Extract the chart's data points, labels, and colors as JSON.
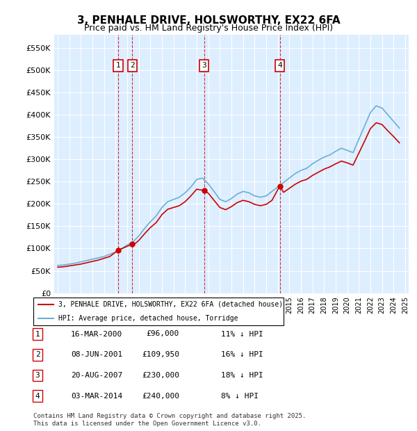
{
  "title": "3, PENHALE DRIVE, HOLSWORTHY, EX22 6FA",
  "subtitle": "Price paid vs. HM Land Registry's House Price Index (HPI)",
  "ylabel_ticks": [
    "£0",
    "£50K",
    "£100K",
    "£150K",
    "£200K",
    "£250K",
    "£300K",
    "£350K",
    "£400K",
    "£450K",
    "£500K",
    "£550K"
  ],
  "ytick_values": [
    0,
    50000,
    100000,
    150000,
    200000,
    250000,
    300000,
    350000,
    400000,
    450000,
    500000,
    550000
  ],
  "ylim": [
    0,
    580000
  ],
  "sale_dates_num": [
    2000.21,
    2001.44,
    2007.64,
    2014.17
  ],
  "sale_prices": [
    96000,
    109950,
    230000,
    240000
  ],
  "sale_labels": [
    "1",
    "2",
    "3",
    "4"
  ],
  "legend_red": "3, PENHALE DRIVE, HOLSWORTHY, EX22 6FA (detached house)",
  "legend_blue": "HPI: Average price, detached house, Torridge",
  "table_rows": [
    [
      "1",
      "16-MAR-2000",
      "£96,000",
      "11% ↓ HPI"
    ],
    [
      "2",
      "08-JUN-2001",
      "£109,950",
      "16% ↓ HPI"
    ],
    [
      "3",
      "20-AUG-2007",
      "£230,000",
      "18% ↓ HPI"
    ],
    [
      "4",
      "03-MAR-2014",
      "£240,000",
      "8% ↓ HPI"
    ]
  ],
  "footnote": "Contains HM Land Registry data © Crown copyright and database right 2025.\nThis data is licensed under the Open Government Licence v3.0.",
  "hpi_color": "#6baed6",
  "price_color": "#cc0000",
  "dashed_color": "#cc0000",
  "background_chart": "#ddeeff",
  "hpi_years": [
    1995.0,
    1995.5,
    1996.0,
    1996.5,
    1997.0,
    1997.5,
    1998.0,
    1998.5,
    1999.0,
    1999.5,
    2000.0,
    2000.5,
    2001.0,
    2001.5,
    2002.0,
    2002.5,
    2003.0,
    2003.5,
    2004.0,
    2004.5,
    2005.0,
    2005.5,
    2006.0,
    2006.5,
    2007.0,
    2007.5,
    2008.0,
    2008.5,
    2009.0,
    2009.5,
    2010.0,
    2010.5,
    2011.0,
    2011.5,
    2012.0,
    2012.5,
    2013.0,
    2013.5,
    2014.0,
    2014.5,
    2015.0,
    2015.5,
    2016.0,
    2016.5,
    2017.0,
    2017.5,
    2018.0,
    2018.5,
    2019.0,
    2019.5,
    2020.0,
    2020.5,
    2021.0,
    2021.5,
    2022.0,
    2022.5,
    2023.0,
    2023.5,
    2024.0,
    2024.5
  ],
  "hpi_values": [
    62000,
    63000,
    65000,
    67000,
    70000,
    73000,
    76000,
    79000,
    82000,
    87000,
    92000,
    99000,
    108000,
    115000,
    128000,
    145000,
    160000,
    173000,
    192000,
    205000,
    210000,
    215000,
    225000,
    238000,
    255000,
    258000,
    245000,
    228000,
    210000,
    205000,
    212000,
    222000,
    228000,
    225000,
    218000,
    215000,
    218000,
    228000,
    238000,
    248000,
    258000,
    268000,
    275000,
    280000,
    290000,
    298000,
    305000,
    310000,
    318000,
    325000,
    320000,
    315000,
    345000,
    375000,
    405000,
    420000,
    415000,
    400000,
    385000,
    370000
  ],
  "red_years": [
    1995.0,
    1995.5,
    1996.0,
    1996.5,
    1997.0,
    1997.5,
    1998.0,
    1998.5,
    1999.0,
    1999.5,
    2000.21,
    2001.44,
    2001.5,
    2002.0,
    2002.5,
    2003.0,
    2003.5,
    2004.0,
    2004.5,
    2005.0,
    2005.5,
    2006.0,
    2006.5,
    2007.0,
    2007.64,
    2008.0,
    2008.5,
    2009.0,
    2009.5,
    2010.0,
    2010.5,
    2011.0,
    2011.5,
    2012.0,
    2012.5,
    2013.0,
    2013.5,
    2014.17,
    2014.5,
    2015.0,
    2015.5,
    2016.0,
    2016.5,
    2017.0,
    2017.5,
    2018.0,
    2018.5,
    2019.0,
    2019.5,
    2020.0,
    2020.5,
    2021.0,
    2021.5,
    2022.0,
    2022.5,
    2023.0,
    2023.5,
    2024.0,
    2024.5
  ],
  "red_values": [
    58000,
    59000,
    61000,
    63000,
    65000,
    68000,
    71000,
    74000,
    78000,
    82000,
    96000,
    109950,
    107000,
    118000,
    133000,
    147000,
    158000,
    176000,
    188000,
    192000,
    196000,
    205000,
    218000,
    233000,
    230000,
    224000,
    208000,
    192000,
    187000,
    194000,
    203000,
    208000,
    205000,
    199000,
    196000,
    199000,
    208000,
    240000,
    226000,
    235000,
    244000,
    251000,
    255000,
    264000,
    271000,
    278000,
    283000,
    290000,
    296000,
    292000,
    287000,
    314000,
    341000,
    369000,
    382000,
    378000,
    364000,
    351000,
    337000
  ]
}
